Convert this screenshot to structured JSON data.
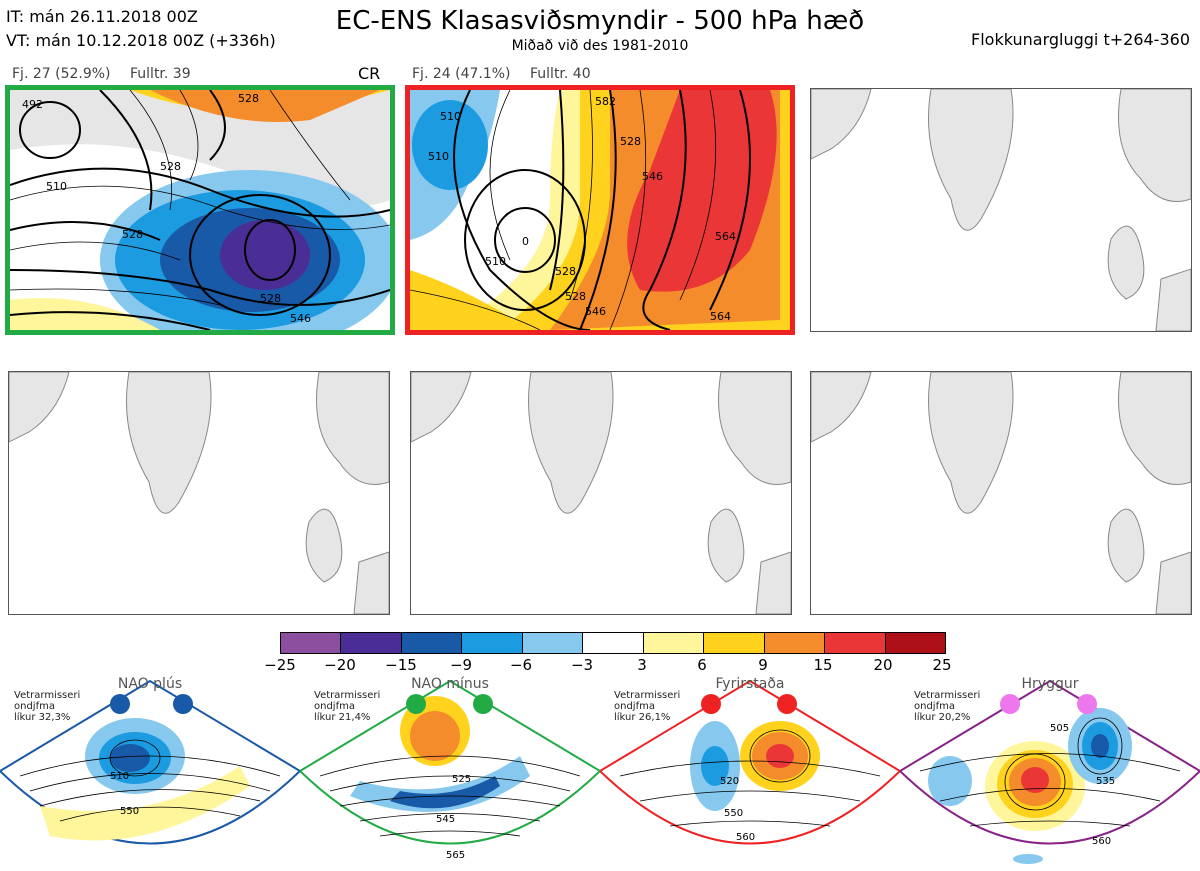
{
  "header": {
    "it_line": "IT: mán 26.11.2018 00Z",
    "vt_line": "VT: mán 10.12.2018 00Z  (+336h)",
    "title": "EC-ENS Klasasviðsmyndir - 500 hPa hæð",
    "subtitle": "Miðað við des 1981-2010",
    "window": "Flokkunargluggi t+264-360"
  },
  "panels": [
    {
      "label": "Fj. 27 (52.9%)",
      "fulltr": "Fulltr. 39",
      "tag": "CR",
      "frame_color": "#22aa44",
      "contour_labels": [
        "492",
        "528",
        "528",
        "510",
        "528",
        "546",
        "528",
        "528"
      ]
    },
    {
      "label": "Fj. 24 (47.1%)",
      "fulltr": "Fulltr. 40",
      "tag": "",
      "frame_color": "#ee2222",
      "contour_labels": [
        "510",
        "510",
        "528",
        "528",
        "546",
        "564",
        "510",
        "528",
        "546",
        "564",
        "582",
        "0",
        "513",
        "546"
      ]
    }
  ],
  "colorbar": {
    "colors": [
      "#8c4fa0",
      "#4b2d96",
      "#1859a8",
      "#1d9be0",
      "#86c8ee",
      "#ffffff",
      "#fff59a",
      "#ffd21e",
      "#f58c2c",
      "#ea3636",
      "#ad1016"
    ],
    "labels": [
      "−25",
      "−20",
      "−15",
      "−9",
      "−6",
      "−3",
      "3",
      "6",
      "9",
      "15",
      "20",
      "25"
    ]
  },
  "regimes": [
    {
      "name": "NAO plús",
      "note": [
        "Vetrarmisseri",
        "ondjfma",
        "líkur 32,3%"
      ],
      "color": "#1859a8",
      "marker_color": "#1859a8",
      "labels": [
        "510",
        "550"
      ]
    },
    {
      "name": "NAO mínus",
      "note": [
        "Vetrarmisseri",
        "ondjfma",
        "líkur 21,4%"
      ],
      "color": "#22aa44",
      "marker_color": "#22aa44",
      "labels": [
        "525",
        "545",
        "565"
      ]
    },
    {
      "name": "Fyrirstaða",
      "note": [
        "Vetrarmisseri",
        "ondjfma",
        "líkur 26,1%"
      ],
      "color": "#ee2222",
      "marker_color": "#ee2222",
      "labels": [
        "520",
        "550",
        "560"
      ]
    },
    {
      "name": "Hryggur",
      "note": [
        "Vetrarmisseri",
        "ondjfma",
        "líkur 20,2%"
      ],
      "color": "#882288",
      "marker_color": "#ee77ee",
      "labels": [
        "505",
        "535",
        "560"
      ]
    }
  ]
}
